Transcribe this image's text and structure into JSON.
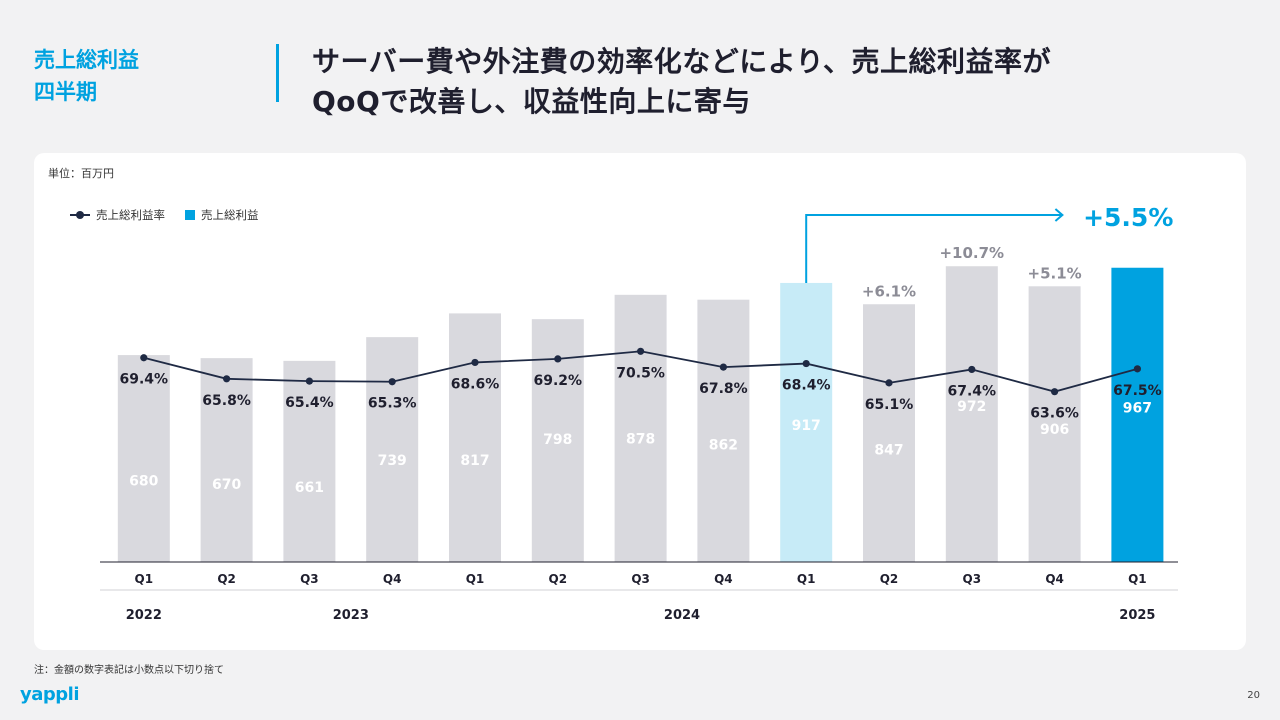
{
  "header": {
    "section_title_line1": "売上総利益",
    "section_title_line2": "四半期",
    "headline_line1": "サーバー費や外注費の効率化などにより、売上総利益率が",
    "headline_line2": "QoQで改善し、収益性向上に寄与"
  },
  "panel": {
    "unit_label": "単位：百万円"
  },
  "legend": {
    "line_label": "売上総利益率",
    "bar_label": "売上総利益"
  },
  "footer": {
    "note": "注：金額の数字表記は小数点以下切り捨て",
    "logo": "yappli",
    "page_number": "20"
  },
  "colors": {
    "accent": "#00a2e0",
    "bar_default": "#d9d9de",
    "bar_prior_year": "#c7ebf7",
    "line": "#1f2a44",
    "growth_label": "#8c8c96"
  },
  "chart_data": {
    "type": "bar+line",
    "categories": [
      "Q1",
      "Q2",
      "Q3",
      "Q4",
      "Q1",
      "Q2",
      "Q3",
      "Q4",
      "Q1",
      "Q2",
      "Q3",
      "Q4",
      "Q1"
    ],
    "years": [
      {
        "label": "2022",
        "start": 0,
        "end": 0
      },
      {
        "label": "2023",
        "start": 1,
        "end": 4
      },
      {
        "label": "2024",
        "start": 5,
        "end": 8
      },
      {
        "label": "2025",
        "start": 12,
        "end": 12
      }
    ],
    "series": [
      {
        "name": "売上総利益",
        "kind": "bar",
        "values": [
          680,
          670,
          661,
          739,
          817,
          798,
          878,
          862,
          917,
          847,
          972,
          906,
          967
        ]
      },
      {
        "name": "売上総利益率",
        "kind": "line",
        "values": [
          69.4,
          65.8,
          65.4,
          65.3,
          68.6,
          69.2,
          70.5,
          67.8,
          68.4,
          65.1,
          67.4,
          63.6,
          67.5
        ],
        "labels": [
          "69.4%",
          "65.8%",
          "65.4%",
          "65.3%",
          "68.6%",
          "69.2%",
          "70.5%",
          "67.8%",
          "68.4%",
          "65.1%",
          "67.4%",
          "63.6%",
          "67.5%"
        ]
      }
    ],
    "growth_labels": [
      {
        "index": 9,
        "text": "+6.1%"
      },
      {
        "index": 10,
        "text": "+10.7%"
      },
      {
        "index": 11,
        "text": "+5.1%"
      }
    ],
    "yoy": {
      "from": 8,
      "to": 12,
      "text": "+5.5%"
    },
    "highlight": {
      "prior_year_index": 8,
      "current_index": 12
    }
  }
}
